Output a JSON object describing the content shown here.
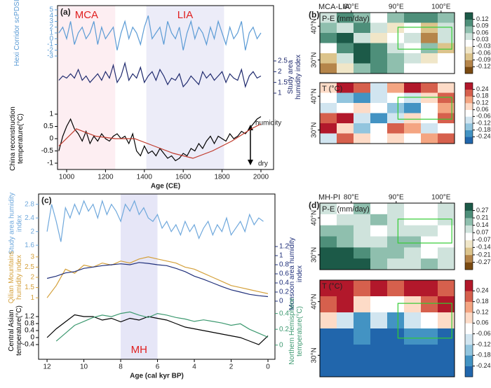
{
  "chart_data": [
    {
      "type": "line",
      "panel": "(a)",
      "xlabel": "Age (CE)",
      "xlim": [
        953,
        2065
      ],
      "xticks": [
        1000,
        1200,
        1400,
        1600,
        1800,
        2000
      ],
      "shade_label_color": "#e02020",
      "shades": [
        {
          "label": "MCA",
          "range": [
            955,
            1250
          ],
          "color": "#fdeef2"
        },
        {
          "label": "LIA",
          "range": [
            1410,
            1810
          ],
          "color": "#ececf8"
        }
      ],
      "annotations": [
        "humidity",
        "dry"
      ],
      "x": [
        960,
        980,
        1000,
        1020,
        1040,
        1060,
        1080,
        1100,
        1120,
        1140,
        1160,
        1180,
        1200,
        1220,
        1240,
        1260,
        1280,
        1300,
        1320,
        1340,
        1360,
        1380,
        1400,
        1420,
        1440,
        1460,
        1480,
        1500,
        1520,
        1540,
        1560,
        1580,
        1600,
        1620,
        1640,
        1660,
        1680,
        1700,
        1720,
        1740,
        1760,
        1780,
        1800,
        1820,
        1840,
        1860,
        1880,
        1900,
        1920,
        1940,
        1960,
        1980,
        2000
      ],
      "series": [
        {
          "name": "Hexi Corridor scPDSI",
          "color": "#5b9bd5",
          "side": "left",
          "ylim": [
            -3,
            5
          ],
          "yticks": [
            -3,
            -2,
            -1,
            0,
            1,
            2,
            3,
            4,
            5
          ],
          "values": [
            1,
            2,
            0,
            3,
            -1,
            1,
            2,
            0,
            1,
            3,
            -1,
            2,
            0,
            1,
            2,
            -2,
            1,
            3,
            0,
            2,
            1,
            -1,
            2,
            4,
            0,
            1,
            2,
            -1,
            3,
            1,
            0,
            2,
            -2,
            1,
            3,
            0,
            2,
            1,
            -1,
            2,
            0,
            3,
            1,
            -1,
            2,
            0,
            1,
            3,
            -2,
            1,
            2,
            0,
            1
          ]
        },
        {
          "name": "Study area humidity index",
          "color": "#1f2a6e",
          "side": "right",
          "ylim": [
            1,
            2.5
          ],
          "yticks": [
            1,
            1.5,
            2,
            2.5
          ],
          "values": [
            1.6,
            1.8,
            1.7,
            1.9,
            1.7,
            2.1,
            1.6,
            1.8,
            1.5,
            1.7,
            1.9,
            1.6,
            2.0,
            1.7,
            2.3,
            1.5,
            1.8,
            2.4,
            1.6,
            1.9,
            1.7,
            2.2,
            1.5,
            1.8,
            2.0,
            1.6,
            2.1,
            1.8,
            1.4,
            1.7,
            1.6,
            1.9,
            1.3,
            1.5,
            1.8,
            1.6,
            1.4,
            2.0,
            1.7,
            1.9,
            1.6,
            1.8,
            2.0,
            1.5,
            1.9,
            1.7,
            1.6,
            2.1,
            1.3,
            1.8,
            2.0,
            1.7,
            1.8
          ]
        },
        {
          "name": "China reconstruction temperature(°C)",
          "color": "#000000",
          "side": "left",
          "ylim": [
            -1,
            1
          ],
          "yticks": [
            -1,
            -0.5,
            0,
            0.5,
            1
          ],
          "values": [
            -0.5,
            0.1,
            0.5,
            0.8,
            0.4,
            0.2,
            -0.1,
            0.3,
            -0.2,
            0.1,
            -0.1,
            0.2,
            0,
            -0.1,
            0.1,
            0.2,
            0,
            0.1,
            -0.2,
            0.2,
            -0.5,
            -0.7,
            -0.3,
            -0.6,
            -0.5,
            -0.7,
            -0.4,
            -0.6,
            -0.8,
            -0.7,
            -0.9,
            -0.8,
            -0.6,
            -0.7,
            -0.4,
            -0.5,
            -0.2,
            -0.4,
            -0.1,
            0.1,
            -0.2,
            0.1,
            0,
            -0.1,
            0.2,
            0,
            0.1,
            0.3,
            0.2,
            0.4,
            0.6,
            0.8,
            0.9
          ],
          "smooth": {
            "color": "#c0392b",
            "x": [
              960,
              1050,
              1150,
              1250,
              1350,
              1450,
              1550,
              1650,
              1750,
              1850,
              1950,
              2000
            ],
            "values": [
              -0.3,
              0.4,
              0.1,
              0,
              0,
              -0.3,
              -0.6,
              -0.8,
              -0.5,
              -0.1,
              0.4,
              0.6
            ]
          }
        }
      ]
    },
    {
      "type": "line",
      "panel": "(c)",
      "xlabel": "Age (cal kyr BP)",
      "xlim": [
        12.46,
        -0.38
      ],
      "xticks": [
        12,
        10,
        8,
        6,
        4,
        2,
        0
      ],
      "shade_label_color": "#e02020",
      "shades": [
        {
          "label": "MH",
          "range": [
            8,
            6
          ],
          "color": "#e6e6f7"
        }
      ],
      "series": [
        {
          "name": "Study area humidity index",
          "color": "#6fa8dc",
          "side": "left",
          "ylim": [
            1.5,
            3.0
          ],
          "yticks": [
            1.6,
            2,
            2.4,
            2.8
          ],
          "x": [
            12,
            11.75,
            11.5,
            11.25,
            11,
            10.75,
            10.5,
            10.25,
            10,
            9.75,
            9.5,
            9.25,
            9,
            8.75,
            8.5,
            8.25,
            8,
            7.75,
            7.5,
            7.25,
            7,
            6.75,
            6.5,
            6.25,
            6,
            5.75,
            5.5,
            5.25,
            5,
            4.75,
            4.5,
            4.25,
            4,
            3.75,
            3.5,
            3.25,
            3,
            2.75,
            2.5,
            2.25,
            2,
            1.75,
            1.5,
            1.25,
            1,
            0.75,
            0.5,
            0.25
          ],
          "values": [
            2.0,
            2.8,
            2.3,
            1.7,
            2.7,
            2.4,
            2.8,
            2.5,
            2.9,
            2.6,
            2.8,
            2.4,
            2.9,
            2.5,
            2.8,
            2.6,
            2.3,
            2.8,
            2.6,
            2.9,
            2.5,
            2.7,
            2.4,
            2.3,
            2.5,
            2.1,
            2.3,
            2.0,
            2.2,
            1.9,
            2.3,
            2.0,
            2.2,
            1.8,
            2.1,
            2.3,
            1.9,
            2.2,
            2.0,
            2.4,
            1.9,
            2.1,
            2.3,
            2.0,
            2.5,
            2.2,
            2.4,
            2.3
          ]
        },
        {
          "name": "Qilian Mountains humidity index",
          "color": "#d4a03a",
          "side": "left",
          "ylim": [
            0.8,
            3.2
          ],
          "yticks": [
            1,
            1.5,
            2,
            2.5,
            3
          ],
          "x": [
            12,
            11.5,
            11,
            10.5,
            10,
            9.5,
            9,
            8.5,
            8,
            7.5,
            7,
            6.5,
            6,
            5.5,
            5,
            4.5,
            4,
            3.5,
            3,
            2.5,
            2,
            1.5,
            1,
            0.5,
            0
          ],
          "values": [
            1.0,
            1.6,
            2.4,
            2.2,
            2.6,
            2.5,
            2.7,
            2.6,
            2.8,
            2.7,
            2.9,
            3.0,
            2.9,
            2.8,
            2.7,
            2.5,
            2.4,
            2.2,
            2.0,
            1.8,
            1.6,
            1.5,
            1.4,
            1.3,
            1.2
          ]
        },
        {
          "name": "Monsoon area humidity index",
          "color": "#1f2f7a",
          "side": "right",
          "ylim": [
            0,
            1.2
          ],
          "yticks": [
            0,
            0.2,
            0.4,
            0.6,
            0.8,
            1,
            1.2
          ],
          "x": [
            12,
            11.5,
            11,
            10.5,
            10,
            9.5,
            9,
            8.5,
            8,
            7.5,
            7,
            6.5,
            6,
            5.5,
            5,
            4.5,
            4,
            3.5,
            3,
            2.5,
            2,
            1.5,
            1,
            0.5,
            0
          ],
          "values": [
            0.5,
            0.55,
            0.62,
            0.65,
            0.72,
            0.75,
            0.78,
            0.8,
            0.82,
            0.8,
            0.85,
            0.83,
            0.8,
            0.78,
            0.72,
            0.65,
            0.55,
            0.48,
            0.4,
            0.32,
            0.25,
            0.2,
            0.15,
            0.12,
            0.1
          ]
        },
        {
          "name": "Central Asian temperature(°C)",
          "color": "#000000",
          "side": "left",
          "ylim": [
            -0.6,
            1.4
          ],
          "yticks": [
            -0.4,
            0,
            0.4,
            0.8,
            1.2
          ],
          "x": [
            12,
            11.5,
            11,
            10.5,
            10,
            9.5,
            9,
            8.5,
            8,
            7.5,
            7,
            6.5,
            6,
            5.5,
            5,
            4.5,
            4,
            3.5,
            3,
            2.5,
            2,
            1.5,
            1,
            0.5,
            0
          ],
          "values": [
            0.0,
            0.5,
            0.9,
            1.3,
            1.2,
            1.2,
            1.0,
            1.1,
            0.9,
            1.1,
            1.0,
            1.2,
            1.1,
            1.0,
            0.8,
            0.6,
            0.5,
            0.4,
            0.3,
            0.2,
            0.1,
            0.0,
            -0.2,
            -0.4,
            0.1
          ]
        },
        {
          "name": "Northern Hemisphere temperature(°C)",
          "color": "#3d9970",
          "side": "right",
          "ylim": [
            -0.1,
            0.45
          ],
          "yticks": [
            0,
            0.2,
            0.4
          ],
          "x": [
            11.5,
            11,
            10.5,
            10,
            9.5,
            9,
            8.5,
            8,
            7.5,
            7,
            6.5,
            6,
            5.5,
            5,
            4.5,
            4,
            3.5,
            3,
            2.5,
            2,
            1.5,
            1,
            0.5,
            0
          ],
          "values": [
            0.05,
            0.15,
            0.25,
            0.3,
            0.35,
            0.38,
            0.36,
            0.4,
            0.42,
            0.38,
            0.35,
            0.4,
            0.38,
            0.35,
            0.33,
            0.3,
            0.32,
            0.3,
            0.28,
            0.25,
            0.27,
            0.2,
            0.15,
            0.1
          ]
        }
      ]
    },
    {
      "type": "heatmap",
      "panel": "(b)",
      "title": "MCA-LIA",
      "label": "P-E (mm/day)",
      "xlim": [
        73,
        103
      ],
      "ylim": [
        26,
        44
      ],
      "xticks": [
        {
          "value": 80,
          "label": "80°E"
        },
        {
          "value": 90,
          "label": "90°E"
        },
        {
          "value": 100,
          "label": "100°E"
        }
      ],
      "yticks": [
        {
          "value": 40,
          "label": "40°N"
        },
        {
          "value": 30,
          "label": "30°N"
        }
      ],
      "colors": [
        "#7a4a12",
        "#b5854a",
        "#dcc48c",
        "#f0e6c8",
        "#ffffff",
        "#cfe3dc",
        "#8fbfae",
        "#4e8f7a",
        "#1c5a48"
      ],
      "cticks": [
        0.12,
        0.09,
        0.06,
        0.03,
        -0.03,
        -0.06,
        -0.09,
        -0.12
      ],
      "values": [
        [
          0.05,
          0.1,
          0.08,
          0.02,
          0.07,
          0.1,
          0.12,
          0.08
        ],
        [
          0.08,
          0.04,
          0.1,
          0.06,
          -0.04,
          0.02,
          -0.08,
          0.05
        ],
        [
          0.1,
          0.13,
          0.05,
          -0.05,
          0.03,
          0.06,
          -0.1,
          0.04
        ],
        [
          0.02,
          0.12,
          0.14,
          0.1,
          0.04,
          -0.02,
          0.07,
          -0.06
        ],
        [
          -0.07,
          0.06,
          0.13,
          0.12,
          0.09,
          0.05,
          -0.03,
          0.02
        ],
        [
          -0.1,
          -0.05,
          0.08,
          0.11,
          0.07,
          0.03,
          0.01,
          -0.02
        ]
      ]
    },
    {
      "type": "heatmap",
      "label": "T (°C)",
      "xlim": [
        73,
        103
      ],
      "ylim": [
        26,
        44
      ],
      "yticks": [
        {
          "value": 40,
          "label": "40°N"
        },
        {
          "value": 30,
          "label": "30°N"
        }
      ],
      "colors": [
        "#2166ac",
        "#4393c3",
        "#92c5de",
        "#d1e5f0",
        "#ffffff",
        "#fddbc7",
        "#f4a582",
        "#d6604d",
        "#b2182b"
      ],
      "cticks": [
        0.24,
        0.18,
        0.12,
        0.06,
        -0.06,
        -0.12,
        -0.18,
        -0.24
      ],
      "values": [
        [
          0.1,
          0.25,
          0.2,
          -0.1,
          0.15,
          0.25,
          0.2,
          0.1
        ],
        [
          0.05,
          -0.15,
          -0.2,
          -0.1,
          0.05,
          -0.1,
          0.08,
          0.2
        ],
        [
          -0.1,
          -0.05,
          0.1,
          0.05,
          -0.15,
          -0.2,
          -0.05,
          0.15
        ],
        [
          0.2,
          0.25,
          -0.1,
          -0.2,
          -0.1,
          0.1,
          0.05,
          0.2
        ],
        [
          0.25,
          0.1,
          -0.15,
          0.05,
          0.2,
          0.15,
          -0.1,
          -0.05
        ],
        [
          -0.1,
          0.2,
          0.1,
          -0.05,
          0.1,
          0.05,
          0.15,
          0.2
        ]
      ]
    },
    {
      "type": "heatmap",
      "panel": "(d)",
      "title": "MH-PI",
      "label": "P-E (mm/day)",
      "xlim": [
        73,
        103
      ],
      "ylim": [
        26,
        44
      ],
      "xticks": [
        {
          "value": 80,
          "label": "80°E"
        },
        {
          "value": 90,
          "label": "90°E"
        },
        {
          "value": 100,
          "label": "100°E"
        }
      ],
      "yticks": [
        {
          "value": 40,
          "label": "40°N"
        },
        {
          "value": 30,
          "label": "30°N"
        }
      ],
      "colors": [
        "#7a4a12",
        "#b5854a",
        "#dcc48c",
        "#f0e6c8",
        "#ffffff",
        "#cfe3dc",
        "#8fbfae",
        "#4e8f7a",
        "#1c5a48"
      ],
      "cticks": [
        0.27,
        0.21,
        0.14,
        0.07,
        -0.07,
        -0.14,
        -0.21,
        -0.27
      ],
      "values": [
        [
          0.1,
          0.05,
          0.15,
          0.07,
          0.1,
          0.05,
          0.03,
          0.1
        ],
        [
          0.05,
          0.12,
          0.08,
          0.15,
          0.1,
          -0.03,
          0.05,
          0.08
        ],
        [
          0.15,
          0.2,
          0.12,
          0.05,
          0.12,
          0.08,
          0.1,
          0.03
        ],
        [
          0.25,
          0.2,
          0.1,
          0.08,
          0.15,
          0.2,
          0.07,
          -0.05
        ],
        [
          0.3,
          0.28,
          0.25,
          0.2,
          0.15,
          0.1,
          0.05,
          0.1
        ],
        [
          0.3,
          0.3,
          0.28,
          0.2,
          0.12,
          0.1,
          0.15,
          0.08
        ]
      ]
    },
    {
      "type": "heatmap",
      "label": "T (°C)",
      "xlim": [
        73,
        103
      ],
      "ylim": [
        26,
        44
      ],
      "yticks": [
        {
          "value": 40,
          "label": "40°N"
        },
        {
          "value": 30,
          "label": "30°N"
        }
      ],
      "colors": [
        "#2166ac",
        "#4393c3",
        "#92c5de",
        "#d1e5f0",
        "#ffffff",
        "#fddbc7",
        "#f4a582",
        "#d6604d",
        "#b2182b"
      ],
      "cticks": [
        0.24,
        0.18,
        0.12,
        0.06,
        -0.06,
        -0.12,
        -0.18,
        -0.24
      ],
      "values": [
        [
          0.25,
          0.25,
          0.2,
          0.25,
          0.2,
          0.25,
          0.25,
          0.2
        ],
        [
          0.2,
          0.25,
          0.1,
          0.05,
          0.0,
          0.1,
          0.2,
          0.25
        ],
        [
          0.1,
          -0.1,
          -0.2,
          -0.1,
          -0.2,
          -0.1,
          0.05,
          0.1
        ],
        [
          -0.25,
          -0.25,
          -0.2,
          -0.25,
          -0.25,
          -0.2,
          -0.2,
          -0.25
        ],
        [
          -0.25,
          -0.25,
          -0.25,
          -0.25,
          -0.25,
          -0.25,
          -0.25,
          -0.25
        ],
        [
          -0.25,
          -0.25,
          -0.25,
          -0.25,
          -0.25,
          -0.25,
          -0.25,
          -0.25
        ]
      ]
    }
  ]
}
